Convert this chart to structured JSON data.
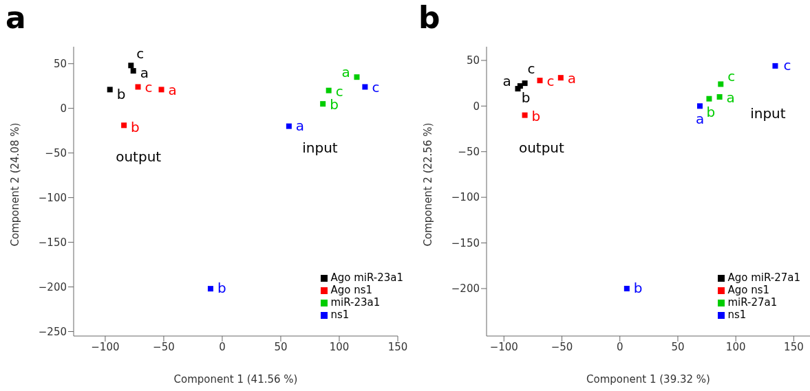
{
  "chart_data": [
    {
      "type": "scatter",
      "title": "a",
      "xlabel": "Component 1 (41.56 %)",
      "ylabel": "Component 2 (24.08 %)",
      "xlim": [
        -127,
        150
      ],
      "ylim": [
        -255,
        69
      ],
      "xticks": [
        -100,
        -50,
        0,
        50,
        100,
        150
      ],
      "yticks": [
        -250,
        -200,
        -150,
        -100,
        -50,
        0,
        50
      ],
      "marker": "square",
      "legend": "bottom right",
      "grid": false,
      "series": [
        {
          "name": "Ago miR-23a1",
          "color": "#000000",
          "x": [
            -76,
            -96,
            -78
          ],
          "values": [
            42,
            21,
            48
          ],
          "value_labels": [
            "a",
            "b",
            "c"
          ]
        },
        {
          "name": "Ago ns1",
          "color": "#ff0000",
          "x": [
            -52,
            -84,
            -72
          ],
          "values": [
            21,
            -19,
            24
          ],
          "value_labels": [
            "a",
            "b",
            "c"
          ]
        },
        {
          "name": "miR-23a1",
          "color": "#00cd00",
          "x": [
            115,
            86,
            91
          ],
          "values": [
            35,
            5,
            20
          ],
          "value_labels": [
            "a",
            "b",
            "c"
          ]
        },
        {
          "name": "ns1",
          "color": "#0000ff",
          "x": [
            57,
            -10,
            122
          ],
          "values": [
            -20,
            -202,
            24
          ],
          "value_labels": [
            "a",
            "b",
            "c"
          ]
        }
      ],
      "annotations": [
        "output",
        "input"
      ]
    },
    {
      "type": "scatter",
      "title": "b",
      "xlabel": "Component 1 (39.32 %)",
      "ylabel": "Component 2 (22.56 %)",
      "xlim": [
        -115,
        164
      ],
      "ylim": [
        -252,
        65
      ],
      "xticks": [
        -100,
        -50,
        0,
        50,
        100,
        150
      ],
      "yticks": [
        -200,
        -150,
        -100,
        -50,
        0,
        50
      ],
      "marker": "square",
      "legend": "bottom right",
      "grid": false,
      "series": [
        {
          "name": "Ago miR-27a1",
          "color": "#000000",
          "x": [
            -88,
            -86,
            -82
          ],
          "values": [
            19,
            22,
            25
          ],
          "value_labels": [
            "a",
            "b",
            "c"
          ]
        },
        {
          "name": "Ago ns1",
          "color": "#ff0000",
          "x": [
            -51,
            -82,
            -69
          ],
          "values": [
            31,
            -10,
            28
          ],
          "value_labels": [
            "a",
            "b",
            "c"
          ]
        },
        {
          "name": "miR-27a1",
          "color": "#00cd00",
          "x": [
            86,
            77,
            87
          ],
          "values": [
            10,
            8,
            24
          ],
          "value_labels": [
            "a",
            "b",
            "c"
          ]
        },
        {
          "name": "ns1",
          "color": "#0000ff",
          "x": [
            69,
            6,
            134
          ],
          "values": [
            0,
            -200,
            44
          ],
          "value_labels": [
            "a",
            "b",
            "c"
          ]
        }
      ],
      "annotations": [
        "output",
        "input"
      ]
    }
  ]
}
